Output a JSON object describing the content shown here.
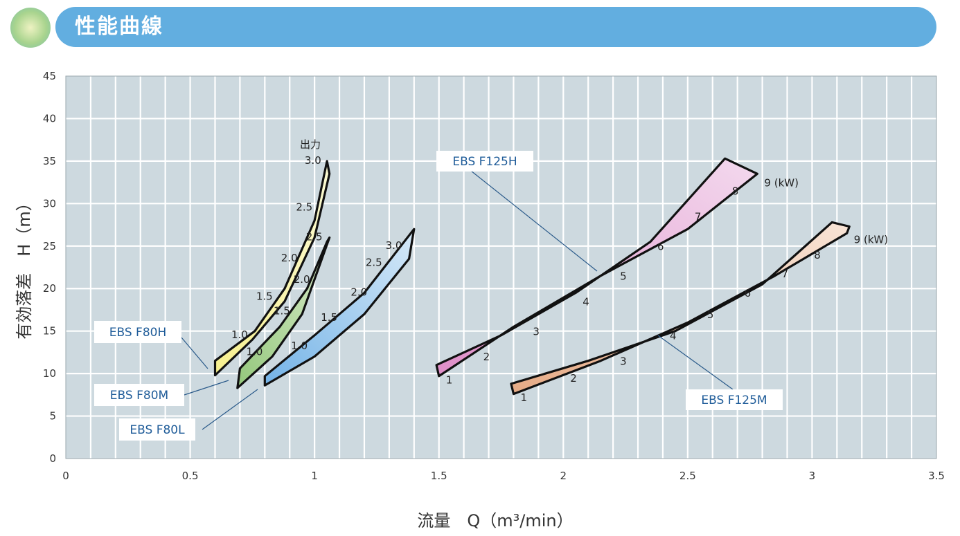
{
  "header": {
    "title": "性能曲線"
  },
  "chart_data": {
    "type": "area",
    "xlabel": "流量　Q（m³/min）",
    "ylabel": "有効落差　H（m）",
    "xlim": [
      0,
      3.5
    ],
    "ylim": [
      0,
      45
    ],
    "xticks": [
      "0",
      "0.5",
      "1",
      "1.5",
      "2",
      "2.5",
      "3",
      "3.5"
    ],
    "yticks": [
      "0",
      "5",
      "10",
      "15",
      "20",
      "25",
      "30",
      "35",
      "40",
      "45"
    ],
    "x_grid_step": 0.1,
    "y_grid_step": 5,
    "grid": true,
    "annotation": "出力",
    "series": [
      {
        "name": "EBS F80H",
        "color": "#f7f08e",
        "color_edge": "#fbfad4",
        "region": [
          [
            0.6,
            9.8
          ],
          [
            0.75,
            14.0
          ],
          [
            0.88,
            18.5
          ],
          [
            1.0,
            26.0
          ],
          [
            1.06,
            33.5
          ],
          [
            1.05,
            35.0
          ],
          [
            1.0,
            28.0
          ],
          [
            0.88,
            20.0
          ],
          [
            0.76,
            15.0
          ],
          [
            0.6,
            11.5
          ]
        ],
        "power_marks": [
          {
            "label": "1.0",
            "x": 0.76,
            "y": 14.5
          },
          {
            "label": "1.5",
            "x": 0.86,
            "y": 19.0
          },
          {
            "label": "2.0",
            "x": 0.96,
            "y": 23.5
          },
          {
            "label": "2.5",
            "x": 1.02,
            "y": 29.5
          },
          {
            "label": "3.0",
            "x": 1.055,
            "y": 35.0
          }
        ]
      },
      {
        "name": "EBS F80M",
        "color": "#94c77c",
        "color_edge": "#d8ebc9",
        "region": [
          [
            0.69,
            8.3
          ],
          [
            0.83,
            12.0
          ],
          [
            0.95,
            17.0
          ],
          [
            1.06,
            26.0
          ],
          [
            1.05,
            25.5
          ],
          [
            0.97,
            20.0
          ],
          [
            0.86,
            15.5
          ],
          [
            0.7,
            10.6
          ]
        ],
        "power_marks": [
          {
            "label": "1.0",
            "x": 0.82,
            "y": 12.5
          },
          {
            "label": "1.5",
            "x": 0.93,
            "y": 17.3
          },
          {
            "label": "2.0",
            "x": 1.01,
            "y": 21.0
          },
          {
            "label": "2.5",
            "x": 1.06,
            "y": 26.0
          }
        ]
      },
      {
        "name": "EBS F80L",
        "color": "#74b3e7",
        "color_edge": "#d6e9f8",
        "region": [
          [
            0.8,
            8.6
          ],
          [
            1.0,
            12.0
          ],
          [
            1.2,
            17.0
          ],
          [
            1.38,
            23.5
          ],
          [
            1.4,
            27.0
          ],
          [
            1.2,
            19.5
          ],
          [
            1.0,
            14.5
          ],
          [
            0.8,
            9.7
          ]
        ],
        "power_marks": [
          {
            "label": "1.0",
            "x": 1.0,
            "y": 13.2
          },
          {
            "label": "1.5",
            "x": 1.12,
            "y": 16.5
          },
          {
            "label": "2.0",
            "x": 1.24,
            "y": 19.5
          },
          {
            "label": "2.5",
            "x": 1.3,
            "y": 23.0
          },
          {
            "label": "3.0",
            "x": 1.38,
            "y": 25.0
          }
        ]
      },
      {
        "name": "EBS F125H",
        "color": "#df8ec8",
        "color_edge": "#f3d9ee",
        "region": [
          [
            1.49,
            11.0
          ],
          [
            1.75,
            14.5
          ],
          [
            2.05,
            19.5
          ],
          [
            2.35,
            25.5
          ],
          [
            2.65,
            35.3
          ],
          [
            2.78,
            33.5
          ],
          [
            2.5,
            27.0
          ],
          [
            2.15,
            21.5
          ],
          [
            1.8,
            15.5
          ],
          [
            1.5,
            9.7
          ]
        ],
        "power_marks": [
          {
            "label": "1",
            "x": 1.5,
            "y": 10.3
          },
          {
            "label": "2",
            "x": 1.65,
            "y": 13.0
          },
          {
            "label": "3",
            "x": 1.85,
            "y": 16.0
          },
          {
            "label": "4",
            "x": 2.05,
            "y": 19.5
          },
          {
            "label": "5",
            "x": 2.2,
            "y": 22.5
          },
          {
            "label": "6",
            "x": 2.35,
            "y": 26.0
          },
          {
            "label": "7",
            "x": 2.5,
            "y": 29.5
          },
          {
            "label": "8",
            "x": 2.65,
            "y": 32.5
          },
          {
            "label": "9 (kW)",
            "x": 2.78,
            "y": 33.5
          }
        ]
      },
      {
        "name": "EBS F125M",
        "color": "#e6ab86",
        "color_edge": "#f8e4d6",
        "region": [
          [
            1.79,
            8.8
          ],
          [
            2.1,
            11.5
          ],
          [
            2.45,
            15.0
          ],
          [
            2.8,
            20.5
          ],
          [
            3.08,
            27.8
          ],
          [
            3.15,
            27.3
          ],
          [
            3.14,
            26.5
          ],
          [
            2.85,
            21.5
          ],
          [
            2.5,
            16.0
          ],
          [
            2.15,
            11.5
          ],
          [
            1.8,
            7.6
          ]
        ],
        "power_marks": [
          {
            "label": "1",
            "x": 1.8,
            "y": 8.2
          },
          {
            "label": "2",
            "x": 2.0,
            "y": 10.5
          },
          {
            "label": "3",
            "x": 2.2,
            "y": 12.5
          },
          {
            "label": "4",
            "x": 2.4,
            "y": 15.5
          },
          {
            "label": "5",
            "x": 2.55,
            "y": 18.0
          },
          {
            "label": "6",
            "x": 2.7,
            "y": 20.5
          },
          {
            "label": "7",
            "x": 2.85,
            "y": 22.8
          },
          {
            "label": "8",
            "x": 2.98,
            "y": 25.0
          },
          {
            "label": "9 (kW)",
            "x": 3.14,
            "y": 26.8
          }
        ]
      }
    ]
  }
}
